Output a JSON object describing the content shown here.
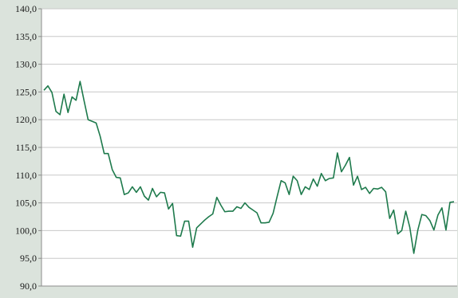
{
  "chart_data": {
    "type": "line",
    "title": "",
    "xlabel": "",
    "ylabel": "",
    "ylim": [
      90,
      140
    ],
    "yticks": [
      "90,0",
      "95,0",
      "100,0",
      "105,0",
      "110,0",
      "115,0",
      "120,0",
      "125,0",
      "130,0",
      "135,0",
      "140,0"
    ],
    "ytick_values": [
      90,
      95,
      100,
      105,
      110,
      115,
      120,
      125,
      130,
      135,
      140
    ],
    "grid": "horizontal",
    "legend": "none",
    "colors": {
      "line": "#1e7a4c",
      "grid": "#c8c8c8",
      "plot_background": "#ffffff",
      "page_background": "#dbe3dc",
      "axis": "#8c8c8c"
    },
    "series": [
      {
        "values": [
          125.3,
          126.1,
          124.9,
          121.5,
          120.9,
          124.6,
          121.3,
          124.1,
          123.5,
          126.9,
          123.4,
          120.0,
          119.7,
          119.4,
          117.0,
          113.9,
          113.9,
          111.0,
          109.6,
          109.5,
          106.5,
          106.8,
          107.9,
          106.9,
          107.9,
          106.2,
          105.5,
          107.6,
          106.1,
          106.9,
          106.8,
          103.9,
          104.9,
          99.1,
          99.0,
          101.7,
          101.7,
          97.0,
          100.5,
          101.2,
          101.9,
          102.5,
          103.0,
          106.0,
          104.6,
          103.4,
          103.5,
          103.5,
          104.3,
          104.0,
          105.0,
          104.2,
          103.7,
          103.2,
          101.4,
          101.4,
          101.5,
          103.1,
          106.1,
          109.0,
          108.6,
          106.5,
          109.8,
          109.0,
          106.5,
          107.9,
          107.4,
          109.3,
          108.0,
          110.3,
          109.0,
          109.4,
          109.5,
          114.0,
          110.6,
          111.8,
          113.2,
          108.2,
          109.8,
          107.4,
          107.8,
          106.7,
          107.6,
          107.5,
          107.8,
          107.0,
          102.2,
          103.7,
          99.4,
          100.0,
          103.5,
          100.6,
          95.9,
          100.1,
          102.9,
          102.7,
          101.8,
          100.1,
          102.8,
          104.1,
          100.1,
          105.1,
          105.2
        ]
      }
    ]
  }
}
